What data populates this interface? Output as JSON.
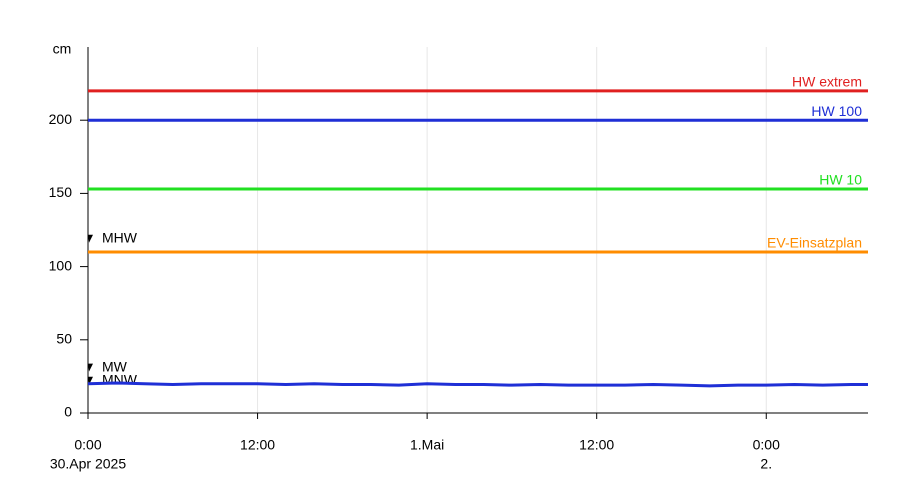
{
  "chart_data": {
    "type": "line",
    "y_label": "cm",
    "x": [
      0,
      2,
      4,
      6,
      8,
      10,
      12,
      14,
      16,
      18,
      20,
      22,
      24,
      26,
      28,
      30,
      32,
      34,
      36,
      38,
      40,
      42,
      44,
      46,
      48,
      50,
      52,
      54,
      55.2
    ],
    "series": [
      {
        "color": "#1f2fd6",
        "values": [
          20,
          20.5,
          20,
          19.5,
          20,
          20,
          20,
          19.5,
          20,
          19.5,
          19.5,
          19,
          20,
          19.5,
          19.5,
          19,
          19.5,
          19,
          19,
          19,
          19.5,
          19,
          18.5,
          19,
          19,
          19.5,
          19,
          19.5,
          19.5
        ]
      }
    ],
    "thresholds": [
      {
        "name": "HW extrem",
        "value": 220,
        "color": "#e02020"
      },
      {
        "name": "HW 100",
        "value": 200,
        "color": "#1f2fd6"
      },
      {
        "name": "HW 10",
        "value": 153,
        "color": "#22e022"
      },
      {
        "name": "EV-Einsatzplan",
        "value": 110,
        "color": "#ff8c00"
      }
    ],
    "markers": [
      {
        "name": "MHW",
        "value": 119
      },
      {
        "name": "MW",
        "value": 31
      },
      {
        "name": "MNW",
        "value": 22
      }
    ],
    "xlim": [
      0,
      55.2
    ],
    "ylim": [
      0,
      250
    ],
    "xticks": [
      {
        "value": 0,
        "label": "0:00"
      },
      {
        "value": 12,
        "label": "12:00"
      },
      {
        "value": 24,
        "label": "1.Mai"
      },
      {
        "value": 36,
        "label": "12:00"
      },
      {
        "value": 48,
        "label": "0:00"
      }
    ],
    "date_labels": [
      {
        "value": 0,
        "label": "30.Apr 2025"
      },
      {
        "value": 48,
        "label": "2."
      }
    ],
    "yticks": [
      0,
      50,
      100,
      150,
      200
    ],
    "grid": "x"
  }
}
